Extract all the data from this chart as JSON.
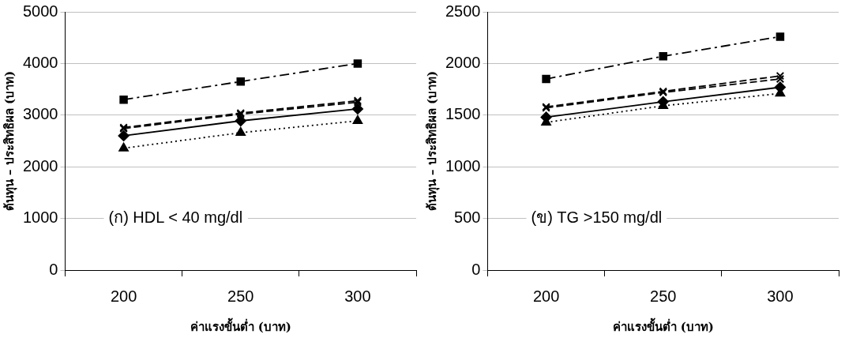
{
  "chart_data": [
    {
      "type": "line",
      "categories": [
        "200",
        "250",
        "300"
      ],
      "xlabel": "ค่าแรงขั้นต่ำ (บาท)",
      "ylabel": "ต้นทุน – ประสิทธิผล (บาท)",
      "ylim": [
        0,
        5000
      ],
      "yticks": [
        0,
        1000,
        2000,
        3000,
        4000,
        5000
      ],
      "grid": "y",
      "annotations": [
        "(ก) HDL < 40 mg/dl"
      ],
      "series": [
        {
          "color": "#000000",
          "marker": "square",
          "line_style": "dashdot",
          "values": [
            3300,
            3650,
            4000
          ]
        },
        {
          "color": "#000000",
          "marker": "cross",
          "line_style": "dashed",
          "values": [
            2760,
            3040,
            3280
          ]
        },
        {
          "color": "#000000",
          "marker": "cross",
          "line_style": "dashed",
          "values": [
            2740,
            3020,
            3250
          ]
        },
        {
          "color": "#000000",
          "marker": "diamond",
          "line_style": "solid",
          "values": [
            2600,
            2890,
            3120
          ]
        },
        {
          "color": "#000000",
          "marker": "triangle",
          "line_style": "dotted",
          "values": [
            2360,
            2660,
            2890
          ]
        }
      ]
    },
    {
      "type": "line",
      "categories": [
        "200",
        "250",
        "300"
      ],
      "xlabel": "ค่าแรงขั้นต่ำ (บาท)",
      "ylabel": "ต้นทุน – ประสิทธิผล (บาท)",
      "ylim": [
        0,
        2500
      ],
      "yticks": [
        0,
        500,
        1000,
        1500,
        2000,
        2500
      ],
      "grid": "y",
      "annotations": [
        "(ข) TG >150 mg/dl"
      ],
      "series": [
        {
          "color": "#000000",
          "marker": "square",
          "line_style": "dashdot",
          "values": [
            1850,
            2070,
            2260
          ]
        },
        {
          "color": "#000000",
          "marker": "cross",
          "line_style": "dashed",
          "values": [
            1580,
            1730,
            1880
          ]
        },
        {
          "color": "#000000",
          "marker": "cross",
          "line_style": "dashed",
          "values": [
            1570,
            1720,
            1850
          ]
        },
        {
          "color": "#000000",
          "marker": "diamond",
          "line_style": "solid",
          "values": [
            1480,
            1630,
            1770
          ]
        },
        {
          "color": "#000000",
          "marker": "triangle",
          "line_style": "dotted",
          "values": [
            1430,
            1590,
            1710
          ]
        }
      ]
    }
  ]
}
